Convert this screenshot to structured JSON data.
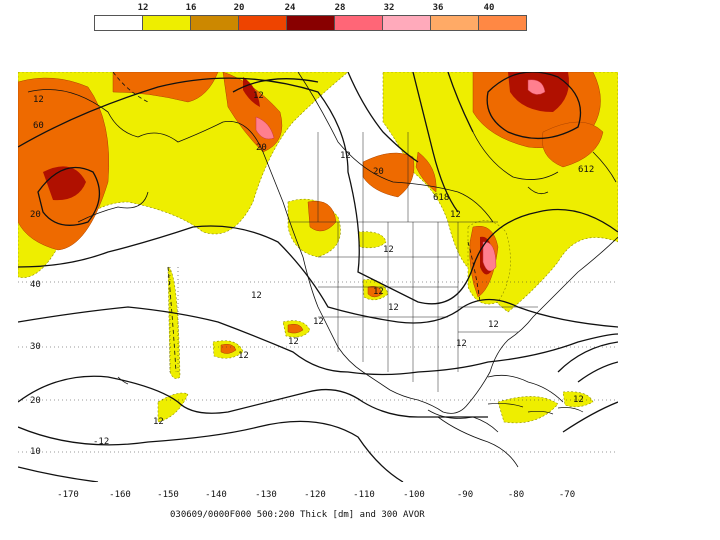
{
  "legend": {
    "levels": [
      "12",
      "16",
      "20",
      "24",
      "28",
      "32",
      "36",
      "40",
      ""
    ],
    "colors": [
      "#ffffff",
      "#eeee00",
      "#cc8800",
      "#ee4400",
      "#880000",
      "#ff6677",
      "#ffaabb",
      "#ffaa66",
      "#ff8844"
    ]
  },
  "map": {
    "lat_labels": [
      "40",
      "30",
      "20",
      "10"
    ],
    "lon_labels": [
      "-170",
      "-160",
      "-150",
      "-140",
      "-130",
      "-120",
      "-110",
      "-100",
      "-90",
      "-80",
      "-70"
    ],
    "contour_labels": [
      "12",
      "60",
      "20",
      "12",
      "20",
      "12",
      "12",
      "20",
      "12",
      "618",
      "612",
      "12",
      "12",
      "12",
      "12",
      "12",
      "12",
      "12",
      "12",
      "12",
      "-12",
      "12"
    ]
  },
  "caption": "030609/0000F000 500:200 Thick [dm] and 300 AVOR"
}
